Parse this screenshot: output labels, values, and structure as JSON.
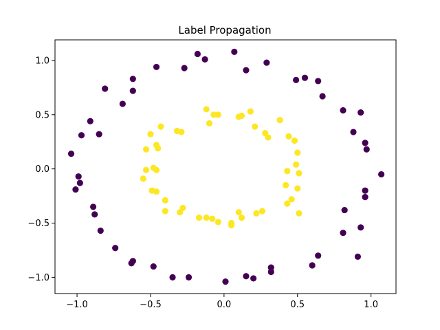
{
  "chart_data": {
    "type": "scatter",
    "title": "Label Propagation",
    "xlabel": "",
    "ylabel": "",
    "xlim": [
      -1.15,
      1.17
    ],
    "ylim": [
      -1.15,
      1.19
    ],
    "grid": false,
    "x_ticks": [
      -1.0,
      -0.5,
      0.0,
      0.5,
      1.0
    ],
    "x_tick_labels": [
      "−1.0",
      "−0.5",
      "0.0",
      "0.5",
      "1.0"
    ],
    "y_ticks": [
      1.0,
      0.5,
      0.0,
      -0.5,
      -1.0
    ],
    "y_tick_labels": [
      "1.0",
      "0.5",
      "0.0",
      "−0.5",
      "−1.0"
    ],
    "colors": {
      "outer": "#440154",
      "inner": "#fde725"
    },
    "series": [
      {
        "class": "outer",
        "points": [
          [
            -0.18,
            1.06
          ],
          [
            0.07,
            1.08
          ],
          [
            -0.13,
            1.01
          ],
          [
            0.29,
            0.98
          ],
          [
            -0.46,
            0.94
          ],
          [
            -0.27,
            0.93
          ],
          [
            0.15,
            0.91
          ],
          [
            -0.62,
            0.83
          ],
          [
            0.55,
            0.84
          ],
          [
            0.49,
            0.82
          ],
          [
            0.64,
            0.81
          ],
          [
            -0.81,
            0.74
          ],
          [
            -0.62,
            0.72
          ],
          [
            0.67,
            0.67
          ],
          [
            -0.69,
            0.6
          ],
          [
            0.81,
            0.54
          ],
          [
            0.93,
            0.52
          ],
          [
            -0.91,
            0.44
          ],
          [
            0.88,
            0.34
          ],
          [
            -0.85,
            0.32
          ],
          [
            -0.97,
            0.31
          ],
          [
            0.96,
            0.24
          ],
          [
            0.97,
            0.18
          ],
          [
            -1.04,
            0.14
          ],
          [
            1.07,
            -0.05
          ],
          [
            -0.99,
            -0.07
          ],
          [
            -0.98,
            -0.13
          ],
          [
            -1.01,
            -0.19
          ],
          [
            0.96,
            -0.2
          ],
          [
            0.96,
            -0.26
          ],
          [
            -0.89,
            -0.35
          ],
          [
            -0.88,
            -0.42
          ],
          [
            0.82,
            -0.38
          ],
          [
            0.93,
            -0.54
          ],
          [
            -0.84,
            -0.57
          ],
          [
            0.81,
            -0.59
          ],
          [
            -0.74,
            -0.73
          ],
          [
            0.64,
            -0.8
          ],
          [
            0.91,
            -0.81
          ],
          [
            -0.62,
            -0.85
          ],
          [
            -0.63,
            -0.87
          ],
          [
            0.6,
            -0.89
          ],
          [
            -0.48,
            -0.9
          ],
          [
            0.32,
            -0.91
          ],
          [
            0.32,
            -0.95
          ],
          [
            -0.35,
            -1.0
          ],
          [
            -0.24,
            -1.0
          ],
          [
            0.15,
            -0.99
          ],
          [
            0.2,
            -1.01
          ],
          [
            0.01,
            -1.04
          ]
        ]
      },
      {
        "class": "inner",
        "points": [
          [
            -0.12,
            0.55
          ],
          [
            0.18,
            0.53
          ],
          [
            -0.07,
            0.5
          ],
          [
            -0.04,
            0.5
          ],
          [
            0.1,
            0.48
          ],
          [
            0.12,
            0.49
          ],
          [
            0.38,
            0.45
          ],
          [
            -0.1,
            0.42
          ],
          [
            0.21,
            0.39
          ],
          [
            -0.43,
            0.39
          ],
          [
            -0.32,
            0.35
          ],
          [
            -0.29,
            0.34
          ],
          [
            0.28,
            0.33
          ],
          [
            -0.5,
            0.32
          ],
          [
            0.3,
            0.29
          ],
          [
            0.44,
            0.3
          ],
          [
            0.48,
            0.26
          ],
          [
            -0.46,
            0.22
          ],
          [
            -0.45,
            0.19
          ],
          [
            -0.53,
            0.18
          ],
          [
            0.5,
            0.15
          ],
          [
            0.49,
            0.04
          ],
          [
            -0.48,
            0.01
          ],
          [
            -0.53,
            -0.01
          ],
          [
            -0.46,
            -0.01
          ],
          [
            0.43,
            -0.02
          ],
          [
            0.51,
            -0.04
          ],
          [
            -0.55,
            -0.09
          ],
          [
            0.42,
            -0.15
          ],
          [
            0.5,
            -0.18
          ],
          [
            -0.49,
            -0.2
          ],
          [
            -0.46,
            -0.21
          ],
          [
            0.46,
            -0.28
          ],
          [
            -0.4,
            -0.29
          ],
          [
            0.43,
            -0.32
          ],
          [
            -0.28,
            -0.36
          ],
          [
            -0.4,
            -0.39
          ],
          [
            -0.3,
            -0.4
          ],
          [
            0.26,
            -0.39
          ],
          [
            0.51,
            -0.41
          ],
          [
            0.1,
            -0.4
          ],
          [
            0.22,
            -0.41
          ],
          [
            -0.17,
            -0.45
          ],
          [
            -0.12,
            -0.45
          ],
          [
            -0.08,
            -0.46
          ],
          [
            0.12,
            -0.45
          ],
          [
            -0.04,
            -0.49
          ],
          [
            0.05,
            -0.5
          ],
          [
            0.05,
            -0.52
          ]
        ]
      }
    ]
  }
}
